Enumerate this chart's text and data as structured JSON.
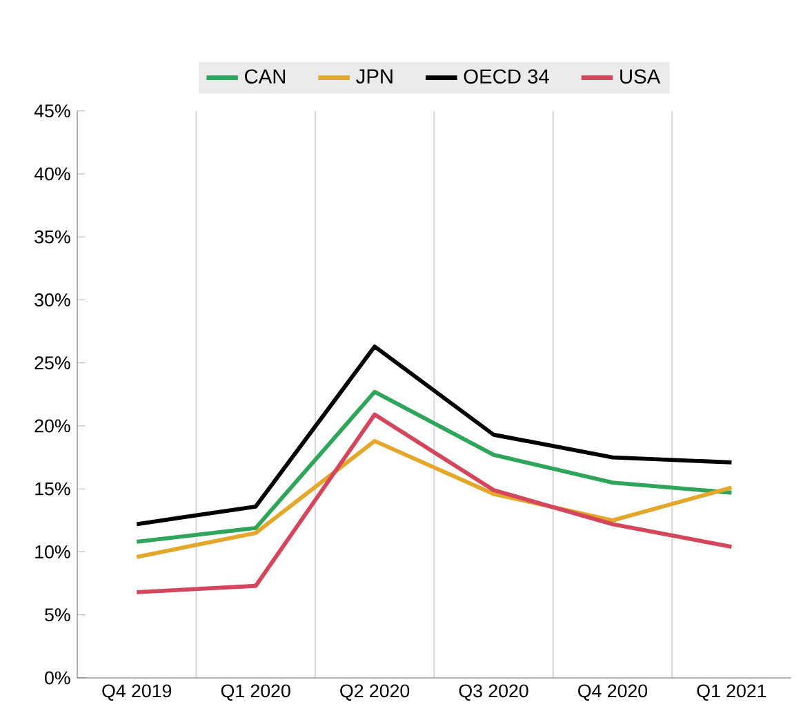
{
  "chart_data": {
    "type": "line",
    "categories": [
      "Q4 2019",
      "Q1 2020",
      "Q2 2020",
      "Q3 2020",
      "Q4 2020",
      "Q1 2021"
    ],
    "series": [
      {
        "name": "CAN",
        "color": "#2ea55a",
        "values": [
          10.8,
          11.9,
          22.7,
          17.7,
          15.5,
          14.7
        ]
      },
      {
        "name": "JPN",
        "color": "#e3a82b",
        "values": [
          9.6,
          11.5,
          18.8,
          14.6,
          12.5,
          15.1
        ]
      },
      {
        "name": "OECD 34",
        "color": "#000000",
        "values": [
          12.2,
          13.6,
          26.3,
          19.3,
          17.5,
          17.1
        ]
      },
      {
        "name": "USA",
        "color": "#d4465c",
        "values": [
          6.8,
          7.3,
          20.9,
          14.9,
          12.2,
          10.4
        ]
      }
    ],
    "ylim": [
      0,
      45
    ],
    "yticks": [
      {
        "value": 0,
        "label": "0%"
      },
      {
        "value": 5,
        "label": "5%"
      },
      {
        "value": 10,
        "label": "10%"
      },
      {
        "value": 15,
        "label": "15%"
      },
      {
        "value": 20,
        "label": "20%"
      },
      {
        "value": 25,
        "label": "25%"
      },
      {
        "value": 30,
        "label": "30%"
      },
      {
        "value": 35,
        "label": "35%"
      },
      {
        "value": 40,
        "label": "40%"
      },
      {
        "value": 45,
        "label": "45%"
      }
    ],
    "grid": "x",
    "legend": "top",
    "marker": "none",
    "line_style": "solid"
  }
}
